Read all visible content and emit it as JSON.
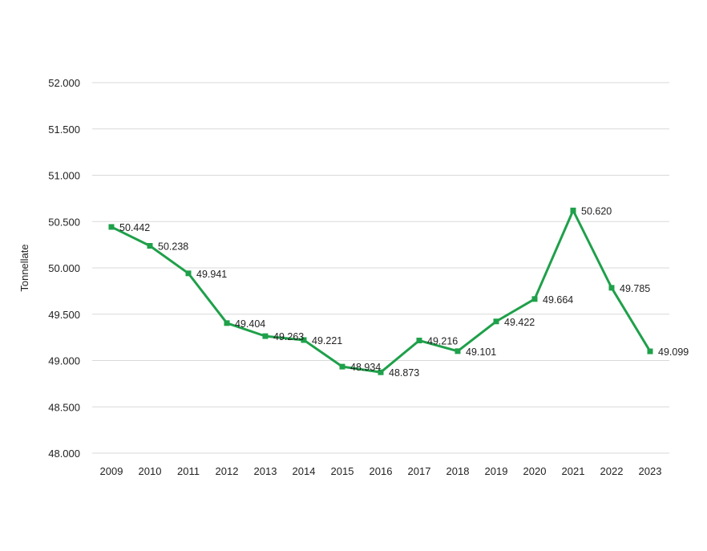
{
  "chart_data": {
    "type": "line",
    "title": "",
    "xlabel": "",
    "ylabel": "Tonnellate",
    "categories": [
      "2009",
      "2010",
      "2011",
      "2012",
      "2013",
      "2014",
      "2015",
      "2016",
      "2017",
      "2018",
      "2019",
      "2020",
      "2021",
      "2022",
      "2023"
    ],
    "series": [
      {
        "values": [
          50442,
          50238,
          49941,
          49404,
          49263,
          49221,
          48934,
          48873,
          49216,
          49101,
          49422,
          49664,
          50620,
          49785,
          49099
        ]
      }
    ],
    "ylim": [
      48000,
      52000
    ],
    "yticks": [
      48000,
      48500,
      49000,
      49500,
      50000,
      50500,
      51000,
      51500,
      52000
    ],
    "number_format": "thousands separator '.'",
    "data_labels": true,
    "markers": "square",
    "grid": true,
    "legend": "none",
    "colors": {
      "line": "#1fa04a",
      "grid": "#d9d9d9",
      "text": "#222222"
    }
  }
}
